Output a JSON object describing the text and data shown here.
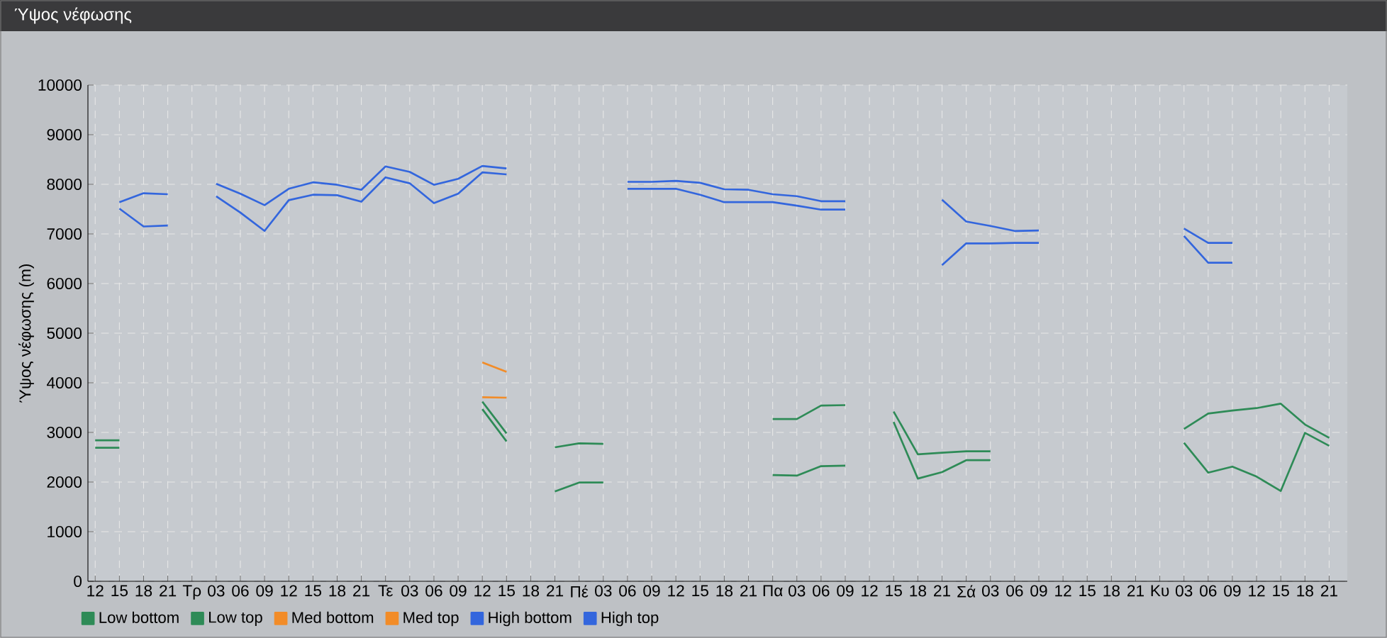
{
  "chart_data": {
    "type": "line",
    "title": "Ύψος νέφωσης",
    "ylabel": "Ύψος νέφωσης (m)",
    "categories": [
      "12",
      "15",
      "18",
      "21",
      "Τρ",
      "03",
      "06",
      "09",
      "12",
      "15",
      "18",
      "21",
      "Τε",
      "03",
      "06",
      "09",
      "12",
      "15",
      "18",
      "21",
      "Πέ",
      "03",
      "06",
      "09",
      "12",
      "15",
      "18",
      "21",
      "Πα",
      "03",
      "06",
      "09",
      "12",
      "15",
      "18",
      "21",
      "Σά",
      "03",
      "06",
      "09",
      "12",
      "15",
      "18",
      "21",
      "Κυ",
      "03",
      "06",
      "09",
      "12",
      "15",
      "18",
      "21"
    ],
    "series": [
      {
        "name": "Low bottom",
        "color": "#2e8b57",
        "values": [
          2690,
          2690,
          null,
          null,
          null,
          null,
          null,
          null,
          null,
          null,
          null,
          null,
          null,
          null,
          null,
          null,
          3470,
          2820,
          null,
          1810,
          1990,
          1990,
          null,
          null,
          null,
          null,
          null,
          null,
          2140,
          2130,
          2320,
          2330,
          null,
          3210,
          2070,
          2200,
          2440,
          2440,
          null,
          null,
          null,
          null,
          null,
          null,
          null,
          2790,
          2190,
          2310,
          2110,
          1820,
          2990,
          2730
        ]
      },
      {
        "name": "Low top",
        "color": "#2e8b57",
        "values": [
          2840,
          2840,
          null,
          null,
          null,
          null,
          null,
          null,
          null,
          null,
          null,
          null,
          null,
          null,
          null,
          null,
          3620,
          2980,
          null,
          2700,
          2780,
          2770,
          null,
          null,
          null,
          null,
          null,
          null,
          3270,
          3270,
          3540,
          3550,
          null,
          3420,
          2560,
          2590,
          2620,
          2620,
          null,
          null,
          null,
          null,
          null,
          null,
          null,
          3070,
          3380,
          3440,
          3490,
          3580,
          3160,
          2890
        ]
      },
      {
        "name": "Med bottom",
        "color": "#f28c28",
        "values": [
          null,
          null,
          null,
          null,
          null,
          null,
          null,
          null,
          null,
          null,
          null,
          null,
          null,
          null,
          null,
          null,
          3710,
          3700,
          null,
          null,
          null,
          null,
          null,
          null,
          null,
          null,
          null,
          null,
          null,
          null,
          null,
          null,
          null,
          null,
          null,
          null,
          null,
          null,
          null,
          null,
          null,
          null,
          null,
          null,
          null,
          null,
          null,
          null,
          null,
          null,
          null,
          null
        ]
      },
      {
        "name": "Med top",
        "color": "#f28c28",
        "values": [
          null,
          null,
          null,
          null,
          null,
          null,
          null,
          null,
          null,
          null,
          null,
          null,
          null,
          null,
          null,
          null,
          4410,
          4220,
          null,
          null,
          null,
          null,
          null,
          null,
          null,
          null,
          null,
          null,
          null,
          null,
          null,
          null,
          null,
          null,
          null,
          null,
          null,
          null,
          null,
          null,
          null,
          null,
          null,
          null,
          null,
          null,
          null,
          null,
          null,
          null,
          null,
          null
        ]
      },
      {
        "name": "High bottom",
        "color": "#3366dd",
        "values": [
          null,
          7510,
          7150,
          7170,
          null,
          7760,
          7430,
          7060,
          7680,
          7790,
          7780,
          7650,
          8140,
          8020,
          7620,
          7810,
          8240,
          8200,
          null,
          null,
          null,
          null,
          7910,
          7910,
          7910,
          7790,
          7640,
          7640,
          7640,
          7570,
          7490,
          7490,
          null,
          null,
          null,
          6370,
          6810,
          6810,
          6820,
          6820,
          null,
          null,
          null,
          null,
          null,
          6960,
          6420,
          6420,
          null,
          null,
          null,
          null
        ]
      },
      {
        "name": "High top",
        "color": "#3366dd",
        "values": [
          null,
          7640,
          7820,
          7800,
          null,
          8010,
          7810,
          7580,
          7910,
          8040,
          7990,
          7890,
          8360,
          8250,
          7990,
          8110,
          8370,
          8320,
          null,
          null,
          null,
          null,
          8050,
          8050,
          8070,
          8030,
          7900,
          7890,
          7800,
          7760,
          7660,
          7660,
          null,
          null,
          null,
          7690,
          7250,
          7160,
          7060,
          7070,
          null,
          null,
          null,
          null,
          null,
          7110,
          6820,
          6820,
          null,
          null,
          null,
          null
        ]
      }
    ],
    "ylim": [
      0,
      10000
    ],
    "yticks": [
      0,
      1000,
      2000,
      3000,
      4000,
      5000,
      6000,
      7000,
      8000,
      9000,
      10000
    ],
    "grid": true,
    "legend": "bottom",
    "marker": "none",
    "line_style": "solid"
  }
}
